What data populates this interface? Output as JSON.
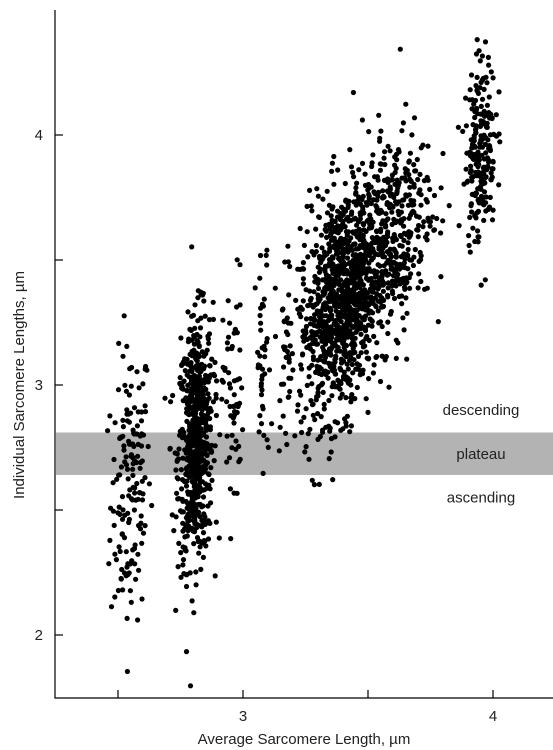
{
  "chart_data": {
    "type": "scatter",
    "xlabel": "Average Sarcomere Length, µm",
    "ylabel": "Individual Sarcomere Lengths, µm",
    "xlim": [
      2.25,
      4.25
    ],
    "ylim": [
      1.75,
      4.5
    ],
    "x_ticks": [
      2.5,
      3,
      3.5,
      4
    ],
    "x_tick_labels": [
      "",
      "3",
      "",
      "4"
    ],
    "y_ticks": [
      2,
      2.5,
      3,
      3.5,
      4
    ],
    "y_tick_labels": [
      "2",
      "",
      "3",
      "",
      "4"
    ],
    "plateau_band": {
      "y_min": 2.64,
      "y_max": 2.81
    },
    "region_labels": [
      {
        "text": "descending",
        "x": 4.0,
        "y": 2.9
      },
      {
        "text": "plateau",
        "x": 4.0,
        "y": 2.725
      },
      {
        "text": "ascending",
        "x": 4.0,
        "y": 2.55
      }
    ],
    "clusters": [
      {
        "x_center": 2.55,
        "x_spread": 0.04,
        "y_mean": 2.6,
        "y_sd": 0.28,
        "count": 160
      },
      {
        "x_center": 2.81,
        "x_spread": 0.035,
        "y_mean": 2.78,
        "y_sd": 0.24,
        "count": 650
      },
      {
        "x_center": 2.96,
        "x_spread": 0.02,
        "y_mean": 2.95,
        "y_sd": 0.25,
        "count": 60
      },
      {
        "x_center": 3.08,
        "x_spread": 0.015,
        "y_mean": 3.05,
        "y_sd": 0.25,
        "count": 40
      },
      {
        "x_center": 3.17,
        "x_spread": 0.01,
        "y_mean": 3.15,
        "y_sd": 0.15,
        "count": 20
      },
      {
        "x_center": 3.4,
        "x_spread": 0.09,
        "y_mean": 3.35,
        "y_sd": 0.22,
        "count": 1100
      },
      {
        "x_center": 3.6,
        "x_spread": 0.08,
        "y_mean": 3.6,
        "y_sd": 0.2,
        "count": 350
      },
      {
        "x_center": 3.95,
        "x_spread": 0.03,
        "y_mean": 3.95,
        "y_sd": 0.18,
        "count": 220
      }
    ]
  }
}
